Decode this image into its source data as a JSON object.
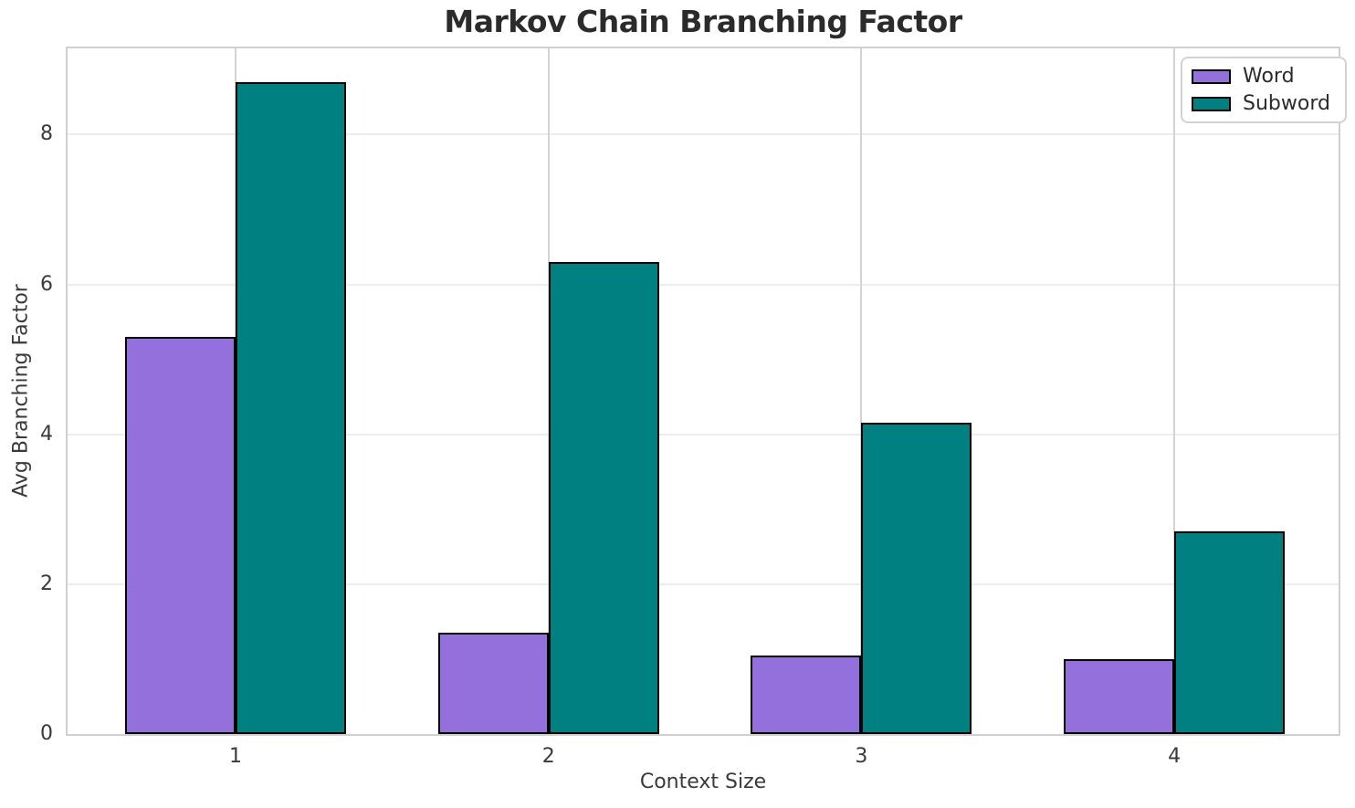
{
  "chart_data": {
    "type": "bar",
    "title": "Markov Chain Branching Factor",
    "xlabel": "Context Size",
    "ylabel": "Avg Branching Factor",
    "categories": [
      "1",
      "2",
      "3",
      "4"
    ],
    "series": [
      {
        "name": "Word",
        "color": "#9370DB",
        "values": [
          5.3,
          1.35,
          1.05,
          1.0
        ]
      },
      {
        "name": "Subword",
        "color": "#008080",
        "values": [
          8.7,
          6.3,
          4.15,
          2.7
        ]
      }
    ],
    "ylim": [
      0,
      9.15
    ],
    "yticks": [
      0,
      2,
      4,
      6,
      8
    ],
    "bar_edge_color": "#000000",
    "grid": true,
    "legend_position": "upper right",
    "colors": {
      "h_gridline": "#ececec",
      "v_gridline": "#d4d4d4",
      "spine": "#d0d0d0",
      "text": "#3a3a3a",
      "title_text": "#2b2b2b"
    }
  }
}
